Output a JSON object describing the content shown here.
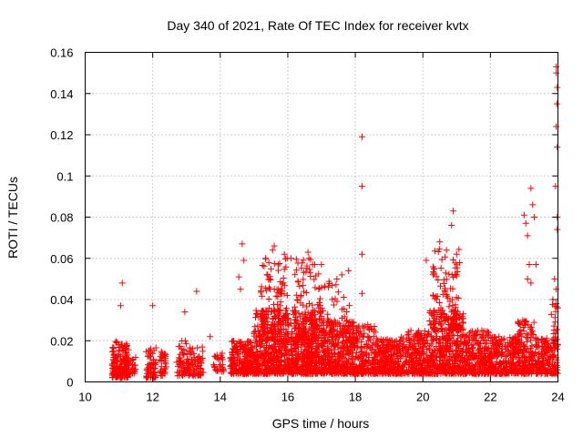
{
  "chart_data": {
    "type": "scatter",
    "title": "Day 340 of 2021, Rate Of TEC Index for receiver kvtx",
    "xlabel": "GPS time / hours",
    "ylabel": "ROTI / TECUs",
    "xlim": [
      10,
      24
    ],
    "ylim": [
      0,
      0.16
    ],
    "xticks": [
      10,
      12,
      14,
      16,
      18,
      20,
      22,
      24
    ],
    "yticks": [
      0,
      0.02,
      0.04,
      0.06,
      0.08,
      0.1,
      0.12,
      0.14,
      0.16
    ],
    "xtick_labels": [
      "10",
      "12",
      "14",
      "16",
      "18",
      "20",
      "22",
      "24"
    ],
    "ytick_labels": [
      "0",
      "0.02",
      "0.04",
      "0.06",
      "0.08",
      "0.1",
      "0.12",
      "0.14",
      "0.16"
    ],
    "grid": true,
    "marker": "+",
    "marker_color": "#ff0000",
    "series": [
      {
        "name": "ROTI",
        "clusters": [
          {
            "x": [
              10.8,
              11.3
            ],
            "ymin": 0.002,
            "ymax": 0.02,
            "n": 160
          },
          {
            "x": [
              11.3,
              11.5
            ],
            "ymin": 0.004,
            "ymax": 0.014,
            "n": 20
          },
          {
            "x": [
              11.8,
              12.1
            ],
            "ymin": 0.002,
            "ymax": 0.017,
            "n": 55
          },
          {
            "x": [
              12.2,
              12.4
            ],
            "ymin": 0.003,
            "ymax": 0.015,
            "n": 35
          },
          {
            "x": [
              12.7,
              13.1
            ],
            "ymin": 0.003,
            "ymax": 0.02,
            "n": 70
          },
          {
            "x": [
              13.1,
              13.5
            ],
            "ymin": 0.003,
            "ymax": 0.017,
            "n": 60
          },
          {
            "x": [
              13.8,
              14.1
            ],
            "ymin": 0.005,
            "ymax": 0.014,
            "n": 30
          },
          {
            "x": [
              14.3,
              15.0
            ],
            "ymin": 0.004,
            "ymax": 0.02,
            "n": 220
          },
          {
            "x": [
              15.0,
              16.0
            ],
            "ymin": 0.004,
            "ymax": 0.035,
            "n": 420
          },
          {
            "x": [
              15.2,
              16.0
            ],
            "ymin": 0.02,
            "ymax": 0.06,
            "n": 110
          },
          {
            "x": [
              16.0,
              17.0
            ],
            "ymin": 0.004,
            "ymax": 0.035,
            "n": 420
          },
          {
            "x": [
              16.2,
              17.0
            ],
            "ymin": 0.02,
            "ymax": 0.06,
            "n": 110
          },
          {
            "x": [
              17.0,
              18.0
            ],
            "ymin": 0.004,
            "ymax": 0.03,
            "n": 360
          },
          {
            "x": [
              17.0,
              17.9
            ],
            "ymin": 0.02,
            "ymax": 0.05,
            "n": 60
          },
          {
            "x": [
              18.0,
              18.6
            ],
            "ymin": 0.004,
            "ymax": 0.028,
            "n": 180
          },
          {
            "x": [
              18.6,
              19.5
            ],
            "ymin": 0.004,
            "ymax": 0.022,
            "n": 260
          },
          {
            "x": [
              19.5,
              20.2
            ],
            "ymin": 0.004,
            "ymax": 0.025,
            "n": 230
          },
          {
            "x": [
              20.2,
              21.2
            ],
            "ymin": 0.004,
            "ymax": 0.035,
            "n": 380
          },
          {
            "x": [
              20.3,
              21.1
            ],
            "ymin": 0.025,
            "ymax": 0.065,
            "n": 110
          },
          {
            "x": [
              21.2,
              22.0
            ],
            "ymin": 0.004,
            "ymax": 0.025,
            "n": 260
          },
          {
            "x": [
              22.0,
              22.8
            ],
            "ymin": 0.004,
            "ymax": 0.022,
            "n": 250
          },
          {
            "x": [
              22.8,
              23.3
            ],
            "ymin": 0.004,
            "ymax": 0.03,
            "n": 170
          },
          {
            "x": [
              23.3,
              23.8
            ],
            "ymin": 0.004,
            "ymax": 0.022,
            "n": 140
          },
          {
            "x": [
              23.8,
              24.0
            ],
            "ymin": 0.004,
            "ymax": 0.04,
            "n": 70
          }
        ],
        "outliers": [
          [
            11.1,
            0.048
          ],
          [
            11.05,
            0.037
          ],
          [
            12.0,
            0.037
          ],
          [
            12.95,
            0.034
          ],
          [
            13.3,
            0.044
          ],
          [
            13.7,
            0.022
          ],
          [
            14.55,
            0.051
          ],
          [
            14.65,
            0.067
          ],
          [
            14.7,
            0.059
          ],
          [
            14.6,
            0.045
          ],
          [
            15.35,
            0.06
          ],
          [
            15.55,
            0.064
          ],
          [
            15.6,
            0.066
          ],
          [
            15.9,
            0.062
          ],
          [
            16.1,
            0.06
          ],
          [
            16.6,
            0.063
          ],
          [
            16.8,
            0.057
          ],
          [
            17.2,
            0.046
          ],
          [
            17.6,
            0.052
          ],
          [
            17.8,
            0.054
          ],
          [
            18.2,
            0.119
          ],
          [
            18.2,
            0.095
          ],
          [
            18.2,
            0.062
          ],
          [
            18.2,
            0.043
          ],
          [
            20.1,
            0.059
          ],
          [
            20.9,
            0.083
          ],
          [
            20.85,
            0.076
          ],
          [
            20.5,
            0.068
          ],
          [
            20.7,
            0.064
          ],
          [
            21.0,
            0.062
          ],
          [
            23.0,
            0.081
          ],
          [
            23.05,
            0.077
          ],
          [
            23.1,
            0.071
          ],
          [
            23.2,
            0.094
          ],
          [
            23.25,
            0.086
          ],
          [
            23.3,
            0.08
          ],
          [
            23.15,
            0.057
          ],
          [
            23.35,
            0.057
          ],
          [
            23.1,
            0.05
          ],
          [
            23.2,
            0.048
          ],
          [
            23.95,
            0.153
          ],
          [
            23.95,
            0.15
          ],
          [
            23.98,
            0.143
          ],
          [
            23.97,
            0.135
          ],
          [
            23.95,
            0.124
          ],
          [
            23.98,
            0.114
          ],
          [
            23.93,
            0.095
          ],
          [
            23.98,
            0.08
          ],
          [
            23.98,
            0.074
          ],
          [
            23.9,
            0.05
          ],
          [
            23.95,
            0.045
          ],
          [
            23.85,
            0.04
          ],
          [
            23.95,
            0.038
          ]
        ]
      }
    ]
  }
}
